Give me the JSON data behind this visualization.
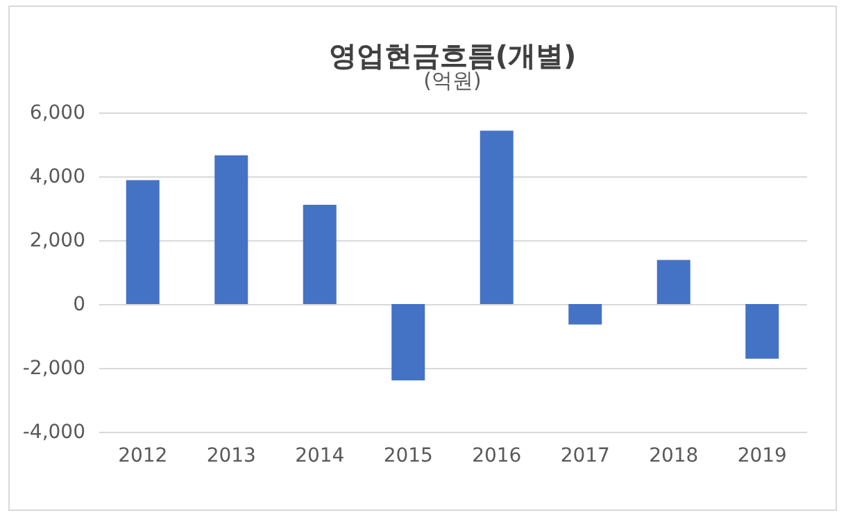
{
  "chart_data": {
    "type": "bar",
    "title": "영업현금흐름(개별)",
    "annotations": [
      "(억원)"
    ],
    "categories": [
      "2012",
      "2013",
      "2014",
      "2015",
      "2016",
      "2017",
      "2018",
      "2019"
    ],
    "values": [
      3880,
      4660,
      3110,
      -2390,
      5430,
      -640,
      1380,
      -1710
    ],
    "color": "#4472c4",
    "ylim": [
      -4000,
      6000
    ],
    "yticks": [
      {
        "value": -4000,
        "label": "-4,000"
      },
      {
        "value": -2000,
        "label": "-2,000"
      },
      0,
      {
        "value": 2000,
        "label": "2,000"
      },
      {
        "value": 4000,
        "label": "4,000"
      },
      {
        "value": 6000,
        "label": "6,000"
      }
    ],
    "grid": "y"
  }
}
